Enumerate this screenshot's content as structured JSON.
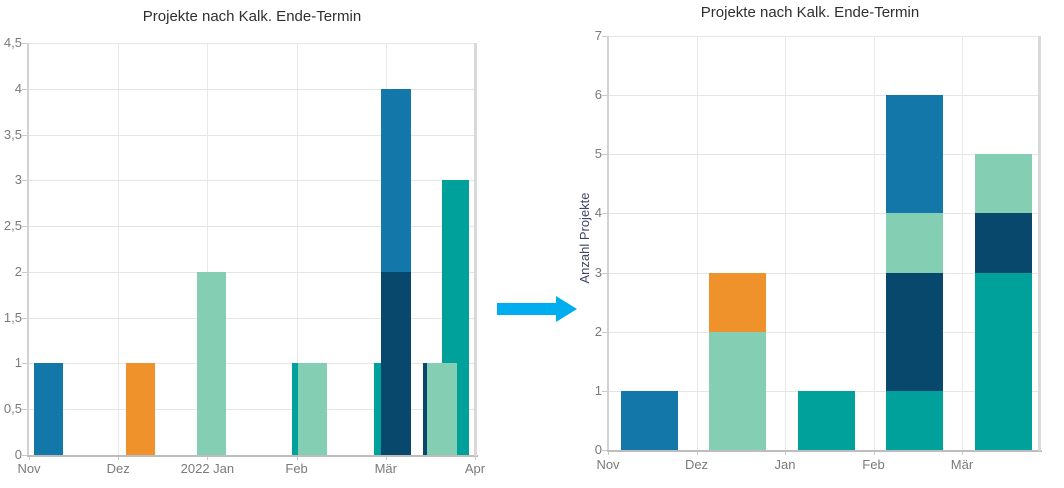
{
  "page": {
    "background": "#ffffff"
  },
  "series_colors": {
    "blue": "#1377A9",
    "orange": "#F0922B",
    "mint": "#84CEB4",
    "teal": "#00A09B",
    "navy": "#07486C"
  },
  "arrow": {
    "direction": "right",
    "color": "#00AEEF"
  },
  "chart_data": [
    {
      "type": "bar",
      "variant": "overlapping-columns",
      "title": "Projekte nach Kalk. Ende-Termin",
      "xlabel": "",
      "ylabel": "",
      "ylim": [
        0,
        4.5
      ],
      "grid": true,
      "legend": "none",
      "ytick_values": [
        0,
        0.5,
        1,
        1.5,
        2,
        2.5,
        3,
        3.5,
        4,
        4.5
      ],
      "ytick_labels": [
        "0",
        "0,5",
        "1",
        "1,5",
        "2",
        "2,5",
        "3",
        "3,5",
        "4",
        "4,5"
      ],
      "xtick_labels": [
        "Nov",
        "Dez",
        "2022 Jan",
        "Feb",
        "Mär",
        "Apr"
      ],
      "bars": [
        {
          "category": "Nov",
          "series": "blue",
          "value": 1,
          "x_frac": 0.0134,
          "w_frac": 0.0647,
          "z": 1
        },
        {
          "category": "Dez",
          "series": "orange",
          "value": 1,
          "x_frac": 0.2188,
          "w_frac": 0.0647,
          "z": 1
        },
        {
          "category": "2022 Jan",
          "series": "mint",
          "value": 2,
          "x_frac": 0.3772,
          "w_frac": 0.0647,
          "z": 1
        },
        {
          "category": "Feb",
          "series": "teal",
          "value": 1,
          "x_frac": 0.5893,
          "w_frac": 0.0647,
          "z": 1
        },
        {
          "category": "Feb",
          "series": "mint",
          "value": 1,
          "x_frac": 0.6027,
          "w_frac": 0.0647,
          "z": 2
        },
        {
          "category": "Mär",
          "series": "teal",
          "value": 1,
          "x_frac": 0.7723,
          "w_frac": 0.0647,
          "z": 1
        },
        {
          "category": "Mär",
          "series": "blue",
          "value": 4,
          "x_frac": 0.7879,
          "w_frac": 0.067,
          "z": 2
        },
        {
          "category": "Mär",
          "series": "navy",
          "value": 2,
          "x_frac": 0.7879,
          "w_frac": 0.067,
          "z": 3
        },
        {
          "category": "Apr",
          "series": "navy",
          "value": 1,
          "x_frac": 0.8817,
          "w_frac": 0.0647,
          "z": 1
        },
        {
          "category": "Apr",
          "series": "teal",
          "value": 3,
          "x_frac": 0.9241,
          "w_frac": 0.0603,
          "z": 2
        },
        {
          "category": "Apr",
          "series": "mint",
          "value": 1,
          "x_frac": 0.8906,
          "w_frac": 0.067,
          "z": 3
        }
      ]
    },
    {
      "type": "bar",
      "variant": "stacked-columns",
      "title": "Projekte nach Kalk. Ende-Termin",
      "xlabel": "",
      "ylabel": "Anzahl Projekte",
      "ylim": [
        0,
        7
      ],
      "grid": true,
      "legend": "none",
      "ytick_values": [
        0,
        1,
        2,
        3,
        4,
        5,
        6,
        7
      ],
      "ytick_labels": [
        "0",
        "1",
        "2",
        "3",
        "4",
        "5",
        "6",
        "7"
      ],
      "xtick_labels": [
        "Nov",
        "Dez",
        "Jan",
        "Feb",
        "Mär"
      ],
      "categories": [
        "Nov",
        "Dez",
        "Jan",
        "Feb",
        "Mär"
      ],
      "stacks": [
        [
          {
            "series": "blue",
            "value": 1
          }
        ],
        [
          {
            "series": "mint",
            "value": 2
          },
          {
            "series": "orange",
            "value": 1
          }
        ],
        [
          {
            "series": "teal",
            "value": 1
          }
        ],
        [
          {
            "series": "teal",
            "value": 1
          },
          {
            "series": "navy",
            "value": 2
          },
          {
            "series": "mint",
            "value": 1
          },
          {
            "series": "blue",
            "value": 2
          }
        ],
        [
          {
            "series": "teal",
            "value": 3
          },
          {
            "series": "navy",
            "value": 1
          },
          {
            "series": "mint",
            "value": 1
          }
        ]
      ],
      "totals": [
        1,
        3,
        1,
        6,
        5
      ]
    }
  ]
}
